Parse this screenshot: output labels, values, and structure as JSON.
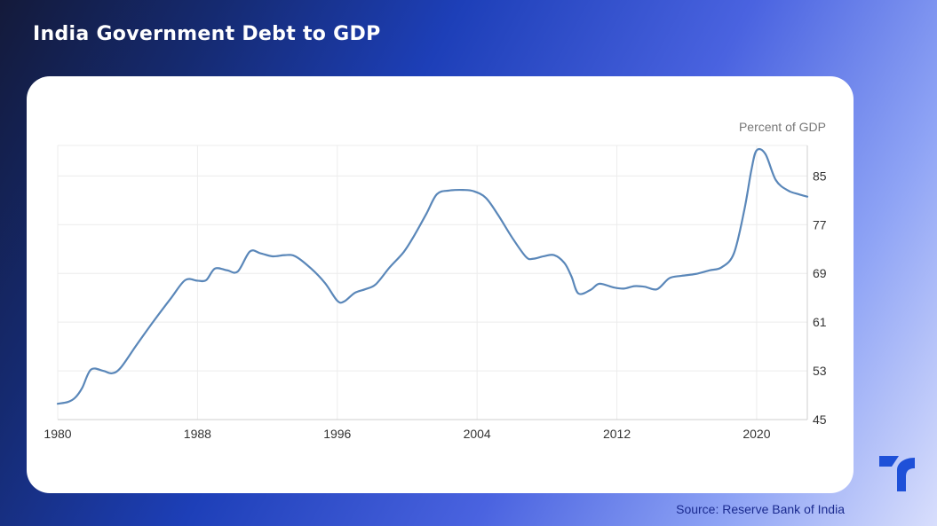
{
  "header": {
    "title": "India Government Debt to GDP"
  },
  "footer": {
    "source": "Source: Reserve Bank of India"
  },
  "logo": {
    "icon": "brand-logo-icon",
    "color": "#1e50d8"
  },
  "chart_data": {
    "type": "line",
    "title": "India Government Debt to GDP",
    "unit_label": "Percent of GDP",
    "xlabel": "",
    "ylabel": "",
    "xlim": [
      1980,
      2022.9
    ],
    "ylim": [
      45,
      90
    ],
    "x_ticks": [
      1980,
      1988,
      1996,
      2004,
      2012,
      2020
    ],
    "y_ticks": [
      45,
      53,
      61,
      69,
      77,
      85
    ],
    "y_axis_side": "right",
    "grid": true,
    "line_color": "#5a87b9",
    "series": [
      {
        "x": [
          1980,
          1980.6,
          1981,
          1981.4,
          1981.9,
          1982.6,
          1983.1,
          1983.6,
          1984.5,
          1985.5,
          1986.5,
          1987.3,
          1988,
          1988.5,
          1989,
          1989.7,
          1990.3,
          1991,
          1991.6,
          1992.3,
          1993,
          1993.6,
          1994.5,
          1995.3,
          1996,
          1996.4,
          1997,
          1997.6,
          1998.2,
          1999,
          1999.8,
          2000.4,
          2001.1,
          2001.7,
          2002.4,
          2003.2,
          2003.8,
          2004.5,
          2005.2,
          2006,
          2006.8,
          2007.2,
          2007.8,
          2008.4,
          2009,
          2009.4,
          2009.8,
          2010.5,
          2011,
          2011.8,
          2012.4,
          2013,
          2013.6,
          2014.3,
          2015,
          2015.7,
          2016.5,
          2017.3,
          2018,
          2018.7,
          2019.3,
          2019.7,
          2020,
          2020.5,
          2021.1,
          2021.8,
          2022.4,
          2022.9
        ],
        "values": [
          47.6,
          47.9,
          48.6,
          50.2,
          53.2,
          53.0,
          52.6,
          53.5,
          57.2,
          61.2,
          65.0,
          67.9,
          67.8,
          67.9,
          69.8,
          69.5,
          69.3,
          72.6,
          72.3,
          71.8,
          72.0,
          71.8,
          69.8,
          67.4,
          64.5,
          64.4,
          65.8,
          66.4,
          67.2,
          70.0,
          72.5,
          75.2,
          78.8,
          82.0,
          82.6,
          82.7,
          82.5,
          81.4,
          78.6,
          74.9,
          71.7,
          71.4,
          71.8,
          72.0,
          70.7,
          68.5,
          65.7,
          66.3,
          67.3,
          66.7,
          66.5,
          66.9,
          66.8,
          66.4,
          68.2,
          68.6,
          68.9,
          69.5,
          70.0,
          72.3,
          79.5,
          86.0,
          89.2,
          88.6,
          84.3,
          82.6,
          82.0,
          81.6
        ]
      }
    ]
  }
}
